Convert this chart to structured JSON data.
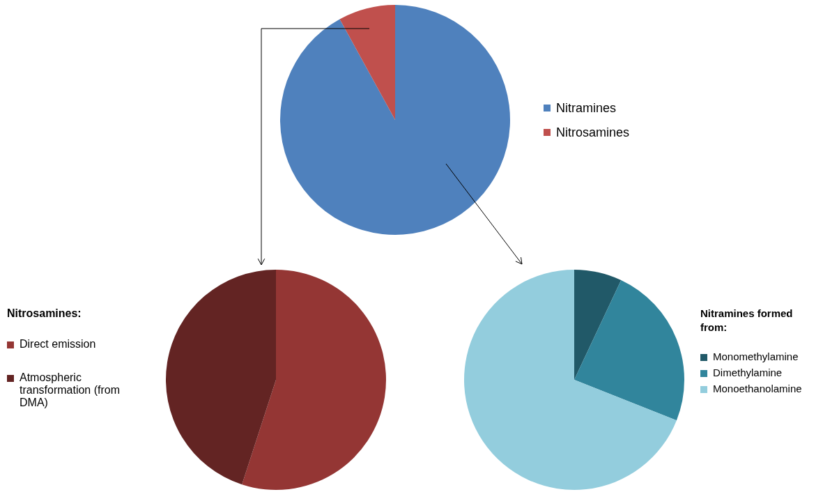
{
  "chart_data": [
    {
      "type": "pie",
      "categories": [
        "Nitramines",
        "Nitrosamines"
      ],
      "values": [
        92,
        8
      ],
      "colors": [
        "#4f81bd",
        "#c0504d"
      ],
      "legend": "right"
    },
    {
      "type": "pie",
      "legend_title": "Nitrosamines:",
      "categories": [
        "Direct emission",
        "Atmospheric transformation (from DMA)"
      ],
      "values": [
        55,
        45
      ],
      "colors": [
        "#943634",
        "#632423"
      ],
      "legend": "left"
    },
    {
      "type": "pie",
      "legend_title": "Nitramines formed from:",
      "categories": [
        "Monomethylamine",
        "Dimethylamine",
        "Monoethanolamine"
      ],
      "values": [
        7,
        24,
        69
      ],
      "colors": [
        "#215968",
        "#31859c",
        "#93cddd"
      ],
      "legend": "right"
    }
  ]
}
